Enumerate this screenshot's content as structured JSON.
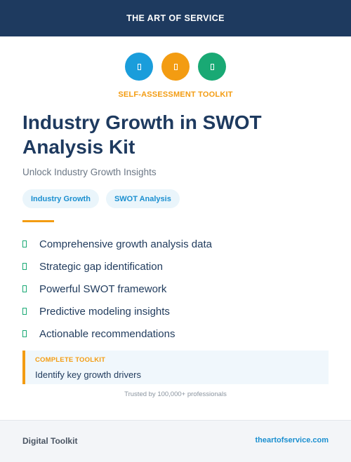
{
  "header": {
    "title": "THE ART OF SERVICE"
  },
  "icons": [
    {
      "name": "document-icon",
      "color": "#1a9ddb"
    },
    {
      "name": "document-icon",
      "color": "#f39c12"
    },
    {
      "name": "document-icon",
      "color": "#19a974"
    }
  ],
  "kicker": "SELF-ASSESSMENT TOOLKIT",
  "title": "Industry Growth in SWOT Analysis Kit",
  "subtitle": "Unlock Industry Growth Insights",
  "tags": [
    "Industry Growth",
    "SWOT Analysis"
  ],
  "features": [
    "Comprehensive growth analysis data",
    "Strategic gap identification",
    "Powerful SWOT framework",
    "Predictive modeling insights",
    "Actionable recommendations"
  ],
  "callout": {
    "label": "COMPLETE TOOLKIT",
    "text": "Identify key growth drivers"
  },
  "trust": "Trusted by 100,000+ professionals",
  "footer": {
    "left": "Digital Toolkit",
    "right": "theartofservice.com"
  },
  "colors": {
    "navy": "#1e3a5f",
    "blue": "#1a9ddb",
    "orange": "#f39c12",
    "green": "#19a974"
  }
}
